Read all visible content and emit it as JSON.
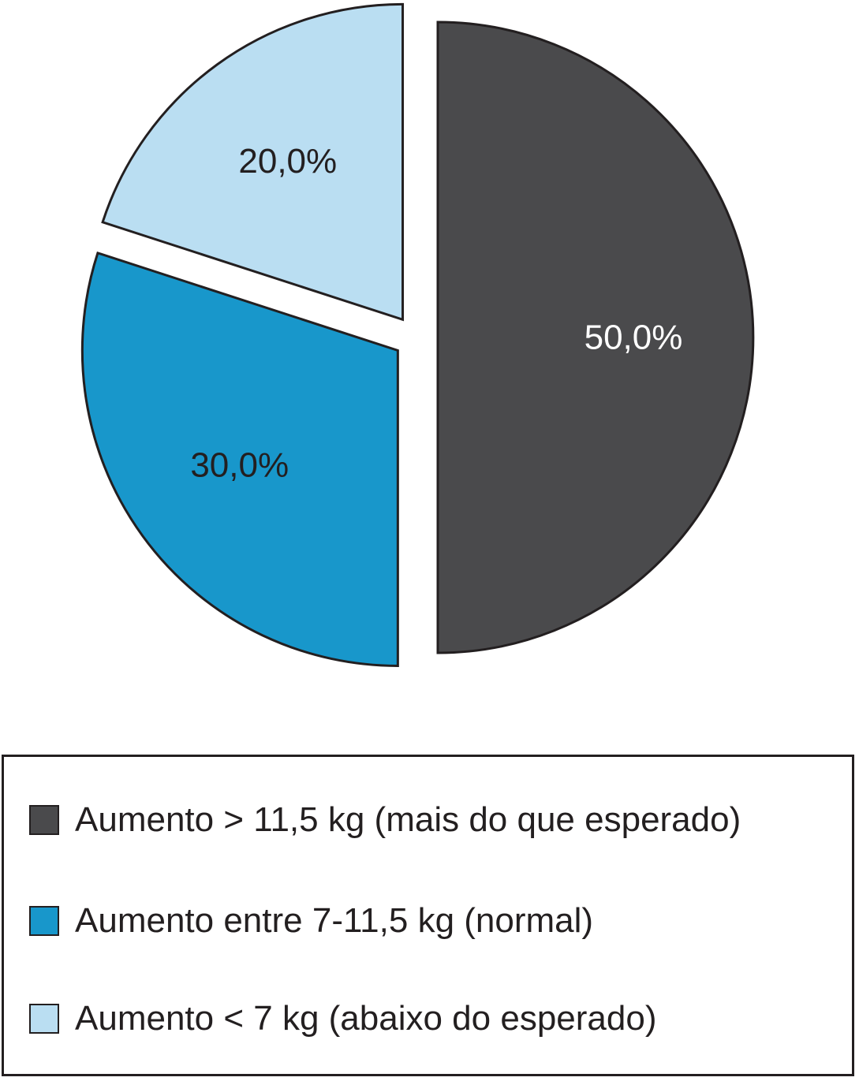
{
  "chart_data": {
    "type": "pie",
    "slices": [
      {
        "label": "Aumento > 11,5 kg (mais do que esperado)",
        "value": 50.0,
        "display": "50,0%",
        "color": "#4a4a4c",
        "text_color": "#ffffff"
      },
      {
        "label": "Aumento entre 7-11,5 kg (normal)",
        "value": 30.0,
        "display": "30,0%",
        "color": "#1897cb",
        "text_color": "#231f20"
      },
      {
        "label": "Aumento < 7 kg (abaixo do esperado)",
        "value": 20.0,
        "display": "20,0%",
        "color": "#badef2",
        "text_color": "#231f20"
      }
    ],
    "start_angle_deg": 0,
    "direction": "clockwise",
    "exploded": true,
    "legend_placement": "bottom"
  },
  "legend": {
    "items": [
      {
        "label": "Aumento > 11,5 kg (mais do que esperado)",
        "color": "#4a4a4c"
      },
      {
        "label": "Aumento entre 7-11,5 kg (normal)",
        "color": "#1897cb"
      },
      {
        "label": "Aumento < 7 kg (abaixo do esperado)",
        "color": "#badef2"
      }
    ]
  },
  "colors": {
    "outline": "#231f20"
  }
}
